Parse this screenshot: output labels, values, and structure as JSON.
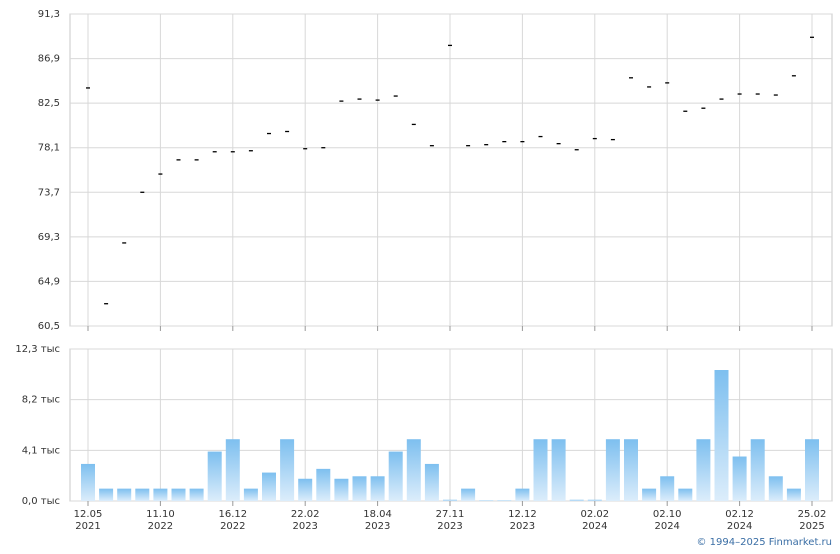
{
  "chart_data": [
    {
      "type": "scatter",
      "categories": [
        [
          "12.05",
          "2021"
        ],
        null,
        null,
        null,
        [
          "11.10",
          "2022"
        ],
        null,
        null,
        null,
        [
          "16.12",
          "2022"
        ],
        null,
        null,
        null,
        [
          "22.02",
          "2023"
        ],
        null,
        null,
        null,
        [
          "18.04",
          "2023"
        ],
        null,
        null,
        null,
        [
          "27.11",
          "2023"
        ],
        null,
        null,
        null,
        [
          "12.12",
          "2023"
        ],
        null,
        null,
        null,
        [
          "02.02",
          "2024"
        ],
        null,
        null,
        null,
        [
          "02.10",
          "2024"
        ],
        null,
        null,
        null,
        [
          "02.12",
          "2024"
        ],
        null,
        null,
        null,
        [
          "25.02",
          "2025"
        ]
      ],
      "values": [
        84.0,
        62.7,
        68.7,
        73.7,
        75.5,
        76.9,
        76.9,
        77.7,
        77.7,
        77.8,
        79.5,
        79.7,
        78.0,
        78.1,
        82.7,
        82.9,
        82.8,
        83.2,
        80.4,
        78.3,
        88.2,
        78.3,
        78.4,
        78.7,
        78.7,
        79.2,
        78.5,
        77.9,
        79.0,
        78.9,
        85.0,
        84.1,
        84.5,
        81.7,
        82.0,
        82.9,
        83.4,
        83.4,
        83.3,
        85.2,
        89.0
      ],
      "color": "#000000",
      "ylim": [
        60.5,
        91.3
      ],
      "yticks": [
        {
          "value": 60.5,
          "label": "60,5"
        },
        {
          "value": 64.9,
          "label": "64,9"
        },
        {
          "value": 69.3,
          "label": "69,3"
        },
        {
          "value": 73.7,
          "label": "73,7"
        },
        {
          "value": 78.1,
          "label": "78,1"
        },
        {
          "value": 82.5,
          "label": "82,5"
        },
        {
          "value": 86.9,
          "label": "86,9"
        },
        {
          "value": 91.3,
          "label": "91,3"
        }
      ],
      "grid": true
    },
    {
      "type": "bar",
      "values": [
        3.0,
        1.0,
        1.0,
        1.0,
        1.0,
        1.0,
        1.0,
        4.0,
        5.0,
        1.0,
        2.3,
        5.0,
        1.8,
        2.6,
        1.8,
        2.0,
        2.0,
        4.0,
        5.0,
        3.0,
        0.1,
        1.0,
        0.05,
        0.05,
        1.0,
        5.0,
        5.0,
        0.1,
        0.1,
        5.0,
        5.0,
        1.0,
        2.0,
        1.0,
        5.0,
        10.6,
        3.6,
        5.0,
        2.0,
        1.0,
        5.0
      ],
      "color": "#7dbfef",
      "ylim": [
        0,
        12.3
      ],
      "yticks": [
        {
          "value": 0,
          "label": "0,0 тыс"
        },
        {
          "value": 4.1,
          "label": "4,1 тыс"
        },
        {
          "value": 8.2,
          "label": "8,2 тыс"
        },
        {
          "value": 12.3,
          "label": "12,3 тыс"
        }
      ],
      "grid": true
    }
  ],
  "footer": "© 1994–2025 Finmarket.ru"
}
